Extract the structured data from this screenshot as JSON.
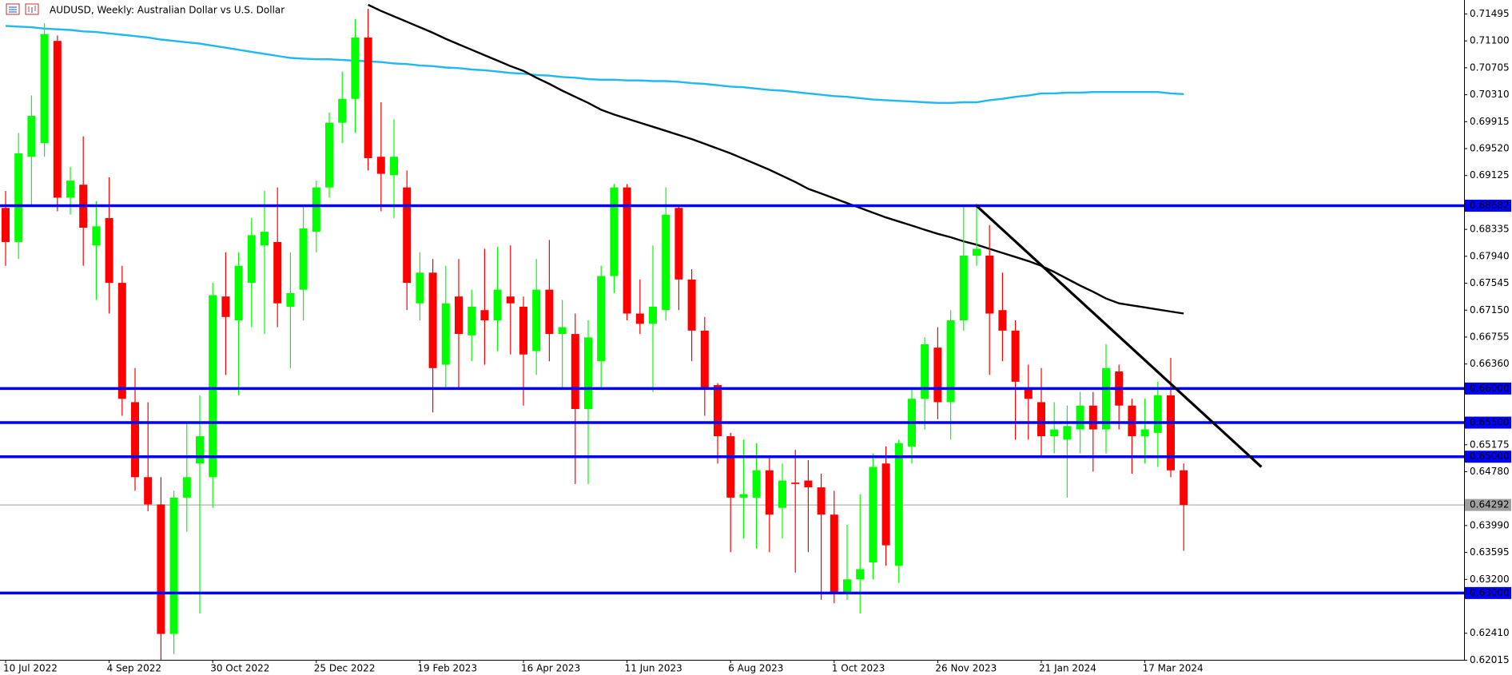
{
  "chart_data": {
    "type": "candlestick",
    "title": "AUDUSD, Weekly:  Australian Dollar vs U.S. Dollar",
    "x": [
      "10 Jul 2022",
      null,
      null,
      null,
      null,
      null,
      null,
      null,
      "4 Sep 2022",
      null,
      null,
      null,
      null,
      null,
      null,
      null,
      "30 Oct 2022",
      null,
      null,
      null,
      null,
      null,
      null,
      null,
      "25 Dec 2022",
      null,
      null,
      null,
      null,
      null,
      null,
      null,
      "19 Feb 2023",
      null,
      null,
      null,
      null,
      null,
      null,
      null,
      "16 Apr 2023",
      null,
      null,
      null,
      null,
      null,
      null,
      null,
      "11 Jun 2023",
      null,
      null,
      null,
      null,
      null,
      null,
      null,
      "6 Aug 2023",
      null,
      null,
      null,
      null,
      null,
      null,
      null,
      "1 Oct 2023",
      null,
      null,
      null,
      null,
      null,
      null,
      null,
      "26 Nov 2023",
      null,
      null,
      null,
      null,
      null,
      null,
      null,
      "21 Jan 2024",
      null,
      null,
      null,
      null,
      null,
      null,
      null,
      "17 Mar 2024",
      null,
      null,
      null
    ],
    "open": [
      0.6865,
      0.6815,
      0.694,
      0.696,
      0.711,
      0.688,
      0.6899,
      0.681,
      0.685,
      0.6755,
      0.658,
      0.647,
      0.643,
      0.624,
      0.644,
      0.649,
      0.647,
      0.6735,
      0.67,
      0.6755,
      0.681,
      0.6815,
      0.672,
      0.6745,
      0.683,
      0.6895,
      0.699,
      0.7025,
      0.7115,
      0.694,
      0.6913,
      0.6895,
      0.6725,
      0.677,
      0.6635,
      0.6735,
      0.6678,
      0.6715,
      0.67,
      0.6735,
      0.672,
      0.6655,
      0.6745,
      0.668,
      0.668,
      0.657,
      0.664,
      0.6765,
      0.6895,
      0.671,
      0.6695,
      0.6715,
      0.6865,
      0.676,
      0.6685,
      0.6605,
      0.653,
      0.644,
      0.644,
      0.648,
      0.6425,
      0.6462,
      0.6465,
      0.6455,
      0.6415,
      0.63,
      0.632,
      0.6345,
      0.649,
      0.634,
      0.6515,
      0.6585,
      0.666,
      0.658,
      0.67,
      0.6795,
      0.6795,
      0.6715,
      0.6685,
      0.66,
      0.658,
      0.653,
      0.6525,
      0.654,
      0.6575,
      0.654,
      0.6625,
      0.6575,
      0.653,
      0.6535,
      0.659,
      0.648
    ],
    "high": [
      0.689,
      0.6975,
      0.703,
      0.7136,
      0.7118,
      0.6925,
      0.697,
      0.6875,
      0.691,
      0.678,
      0.663,
      0.658,
      0.647,
      0.645,
      0.655,
      0.659,
      0.6755,
      0.68,
      0.68,
      0.685,
      0.689,
      0.6895,
      0.68,
      0.687,
      0.6905,
      0.7005,
      0.7065,
      0.7142,
      0.7157,
      0.702,
      0.6995,
      0.692,
      0.68,
      0.679,
      0.678,
      0.679,
      0.6745,
      0.6805,
      0.6808,
      0.681,
      0.6735,
      0.679,
      0.6818,
      0.673,
      0.671,
      0.67,
      0.678,
      0.69,
      0.69,
      0.676,
      0.681,
      0.6895,
      0.687,
      0.6775,
      0.6705,
      0.6608,
      0.6535,
      0.6525,
      0.652,
      0.65,
      0.649,
      0.651,
      0.6495,
      0.6475,
      0.645,
      0.64,
      0.6445,
      0.6505,
      0.6515,
      0.6525,
      0.66,
      0.6675,
      0.669,
      0.6715,
      0.687,
      0.6871,
      0.684,
      0.677,
      0.67,
      0.6635,
      0.663,
      0.658,
      0.6575,
      0.6595,
      0.6595,
      0.6665,
      0.6635,
      0.6585,
      0.6585,
      0.661,
      0.6645,
      0.649
    ],
    "low": [
      0.678,
      0.679,
      0.687,
      0.694,
      0.686,
      0.6855,
      0.678,
      0.673,
      0.671,
      0.656,
      0.645,
      0.642,
      0.617,
      0.621,
      0.639,
      0.627,
      0.6425,
      0.662,
      0.659,
      0.669,
      0.668,
      0.669,
      0.663,
      0.67,
      0.68,
      0.688,
      0.696,
      0.6975,
      0.692,
      0.686,
      0.685,
      0.6715,
      0.67,
      0.6565,
      0.66,
      0.66,
      0.664,
      0.6635,
      0.6655,
      0.665,
      0.6575,
      0.662,
      0.664,
      0.66,
      0.646,
      0.646,
      0.66,
      0.674,
      0.67,
      0.668,
      0.6595,
      0.67,
      0.6715,
      0.664,
      0.656,
      0.649,
      0.636,
      0.638,
      0.6365,
      0.636,
      0.638,
      0.633,
      0.636,
      0.629,
      0.6285,
      0.629,
      0.627,
      0.632,
      0.634,
      0.6315,
      0.649,
      0.654,
      0.6555,
      0.6525,
      0.6685,
      0.678,
      0.662,
      0.664,
      0.6525,
      0.6525,
      0.65,
      0.6505,
      0.644,
      0.6505,
      0.6478,
      0.6505,
      0.654,
      0.6475,
      0.649,
      0.6485,
      0.647,
      0.6362
    ],
    "close": [
      0.6815,
      0.6945,
      0.7,
      0.712,
      0.688,
      0.6905,
      0.6836,
      0.6838,
      0.6755,
      0.6585,
      0.647,
      0.643,
      0.624,
      0.644,
      0.647,
      0.653,
      0.6737,
      0.6705,
      0.678,
      0.6825,
      0.683,
      0.6725,
      0.674,
      0.6835,
      0.6895,
      0.699,
      0.7025,
      0.7115,
      0.6938,
      0.6915,
      0.694,
      0.6755,
      0.677,
      0.663,
      0.6725,
      0.668,
      0.672,
      0.67,
      0.6745,
      0.6725,
      0.665,
      0.6745,
      0.668,
      0.669,
      0.657,
      0.6675,
      0.6765,
      0.6895,
      0.671,
      0.6695,
      0.672,
      0.6855,
      0.676,
      0.6685,
      0.66,
      0.653,
      0.644,
      0.6445,
      0.648,
      0.6415,
      0.6465,
      0.646,
      0.6455,
      0.6415,
      0.63,
      0.632,
      0.6335,
      0.6485,
      0.637,
      0.652,
      0.6585,
      0.6665,
      0.658,
      0.67,
      0.6795,
      0.6805,
      0.671,
      0.6685,
      0.661,
      0.6585,
      0.653,
      0.654,
      0.6545,
      0.6575,
      0.654,
      0.663,
      0.6575,
      0.653,
      0.654,
      0.659,
      0.648,
      0.6429
    ],
    "up_color": "#00ff00",
    "down_color": "#ff0000",
    "ylim": [
      0.6202,
      0.717
    ],
    "yticks": [
      {
        "value": 0.71495,
        "label": "0.71495"
      },
      {
        "value": 0.711,
        "label": "0.71100"
      },
      {
        "value": 0.70705,
        "label": "0.70705"
      },
      {
        "value": 0.7031,
        "label": "0.70310"
      },
      {
        "value": 0.69915,
        "label": "0.69915"
      },
      {
        "value": 0.6952,
        "label": "0.69520"
      },
      {
        "value": 0.69125,
        "label": "0.69125"
      },
      {
        "value": 0.68335,
        "label": "0.68335"
      },
      {
        "value": 0.6794,
        "label": "0.67940"
      },
      {
        "value": 0.67545,
        "label": "0.67545"
      },
      {
        "value": 0.6715,
        "label": "0.67150"
      },
      {
        "value": 0.66755,
        "label": "0.66755"
      },
      {
        "value": 0.6636,
        "label": "0.66360"
      },
      {
        "value": 0.65175,
        "label": "0.65175"
      },
      {
        "value": 0.6478,
        "label": "0.64780"
      },
      {
        "value": 0.6399,
        "label": "0.63990"
      },
      {
        "value": 0.63595,
        "label": "0.63595"
      },
      {
        "value": 0.632,
        "label": "0.63200"
      },
      {
        "value": 0.6241,
        "label": "0.62410"
      },
      {
        "value": 0.62015,
        "label": "0.62015"
      }
    ],
    "lines": [
      {
        "color": "#1fb8f0",
        "values": [
          0.7132,
          0.7131,
          0.713,
          0.7128,
          0.7127,
          0.7126,
          0.7124,
          0.7123,
          0.7121,
          0.7119,
          0.7117,
          0.7115,
          0.7112,
          0.711,
          0.7108,
          0.7106,
          0.7103,
          0.71,
          0.7097,
          0.7094,
          0.7091,
          0.7088,
          0.7085,
          0.7084,
          0.7083,
          0.7083,
          0.7082,
          0.7081,
          0.708,
          0.7079,
          0.7077,
          0.7076,
          0.7074,
          0.7073,
          0.7071,
          0.707,
          0.7068,
          0.7067,
          0.7065,
          0.7063,
          0.7062,
          0.706,
          0.7059,
          0.7057,
          0.7056,
          0.7054,
          0.7053,
          0.7053,
          0.7052,
          0.7052,
          0.7051,
          0.7051,
          0.705,
          0.7048,
          0.7047,
          0.7045,
          0.7043,
          0.7042,
          0.704,
          0.7038,
          0.7037,
          0.7035,
          0.7033,
          0.7031,
          0.7029,
          0.7028,
          0.7026,
          0.7024,
          0.7023,
          0.7022,
          0.7021,
          0.702,
          0.7019,
          0.7019,
          0.702,
          0.702,
          0.7023,
          0.7025,
          0.7028,
          0.703,
          0.7033,
          0.7033,
          0.7034,
          0.7034,
          0.7035,
          0.7035,
          0.7035,
          0.7035,
          0.7035,
          0.7035,
          0.7033,
          0.7032
        ]
      },
      {
        "color": "#000000",
        "values": [
          null,
          null,
          null,
          null,
          null,
          null,
          null,
          null,
          null,
          null,
          null,
          null,
          null,
          null,
          null,
          null,
          null,
          null,
          null,
          null,
          null,
          null,
          null,
          null,
          null,
          null,
          null,
          null,
          0.7163,
          0.7154,
          0.7146,
          0.7138,
          0.713,
          0.7122,
          0.7113,
          0.7105,
          0.7097,
          0.7089,
          0.7081,
          0.7073,
          0.7066,
          0.7056,
          0.7047,
          0.7037,
          0.7028,
          0.7019,
          0.7009,
          0.7002,
          0.6996,
          0.699,
          0.6984,
          0.6978,
          0.6972,
          0.6966,
          0.6959,
          0.6952,
          0.6945,
          0.6937,
          0.6929,
          0.6921,
          0.6912,
          0.6903,
          0.6893,
          0.6886,
          0.6879,
          0.6872,
          0.6865,
          0.6858,
          0.6851,
          0.6845,
          0.6839,
          0.6833,
          0.6827,
          0.6822,
          0.6816,
          0.6811,
          0.6805,
          0.6799,
          0.6793,
          0.6787,
          0.678,
          0.6771,
          0.6761,
          0.6751,
          0.6742,
          0.6732,
          0.6725,
          0.6722,
          0.6719,
          0.6716,
          0.6713,
          0.671
        ]
      }
    ],
    "trendline": {
      "color": "#000000",
      "x": [
        75,
        97
      ],
      "values": [
        0.6868,
        0.6485
      ]
    },
    "levels": [
      {
        "value": 0.68682,
        "label": "0.68682",
        "color": "#0000ff"
      },
      {
        "value": 0.66,
        "label": "0.66000",
        "color": "#0000ff"
      },
      {
        "value": 0.655,
        "label": "0.65500",
        "color": "#0000ff"
      },
      {
        "value": 0.65,
        "label": "0.65000",
        "color": "#0000ff"
      },
      {
        "value": 0.63,
        "label": "0.63000",
        "color": "#0000ff"
      }
    ],
    "last_price": {
      "value": 0.64292,
      "label": "0.64292",
      "color": "#a0a0a0"
    }
  }
}
